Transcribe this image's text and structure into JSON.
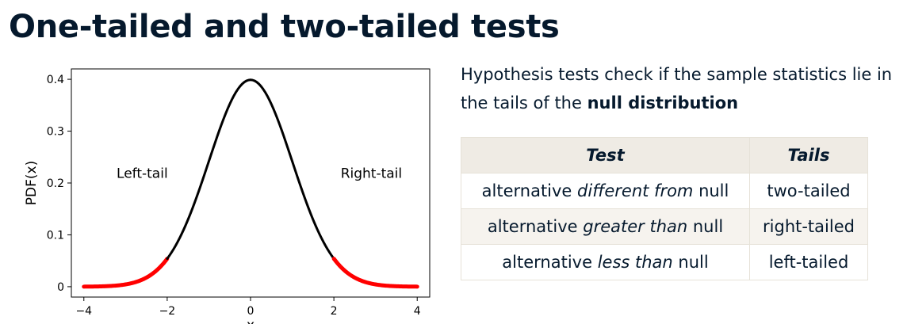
{
  "slide": {
    "title": "One-tailed and two-tailed tests"
  },
  "intro": {
    "text_before": "Hypothesis tests check if the sample statistics lie in the tails of the ",
    "emphasis": "null distribution"
  },
  "table": {
    "headers": {
      "test": "Test",
      "tails": "Tails"
    },
    "rows": [
      {
        "pre": "alternative ",
        "em": "different from",
        "post": " null",
        "tails": "two-tailed"
      },
      {
        "pre": "alternative ",
        "em": "greater than",
        "post": " null",
        "tails": "right-tailed"
      },
      {
        "pre": "alternative ",
        "em": "less than",
        "post": " null",
        "tails": "left-tailed"
      }
    ]
  },
  "chart_data": {
    "type": "line",
    "title": "",
    "xlabel": "x",
    "ylabel": "PDF(x)",
    "xlim": [
      -4.3,
      4.3
    ],
    "ylim": [
      -0.02,
      0.42
    ],
    "x_ticks": [
      -4,
      -2,
      0,
      2,
      4
    ],
    "x_tick_labels": [
      "−4",
      "−2",
      "0",
      "2",
      "4"
    ],
    "y_ticks": [
      0,
      0.1,
      0.2,
      0.3,
      0.4
    ],
    "y_tick_labels": [
      "0",
      "0.1",
      "0.2",
      "0.3",
      "0.4"
    ],
    "grid": false,
    "curve": "standard normal PDF",
    "series": [
      {
        "x": [
          -4,
          -3.5,
          -3,
          -2.5,
          -2
        ],
        "y": [
          0.0001,
          0.0009,
          0.0044,
          0.0175,
          0.054
        ],
        "color": "#ff0000"
      },
      {
        "x": [
          -2,
          -1.5,
          -1,
          -0.5,
          0,
          0.5,
          1,
          1.5,
          2
        ],
        "y": [
          0.054,
          0.1295,
          0.242,
          0.3521,
          0.3989,
          0.3521,
          0.242,
          0.1295,
          0.054
        ],
        "color": "#000000"
      },
      {
        "x": [
          2,
          2.5,
          3,
          3.5,
          4
        ],
        "y": [
          0.054,
          0.0175,
          0.0044,
          0.0009,
          0.0001
        ],
        "color": "#ff0000"
      }
    ],
    "annotations": [
      {
        "text": "Left-tail",
        "x": -2.6,
        "y": 0.21
      },
      {
        "text": "Right-tail",
        "x": 2.9,
        "y": 0.21
      }
    ]
  }
}
